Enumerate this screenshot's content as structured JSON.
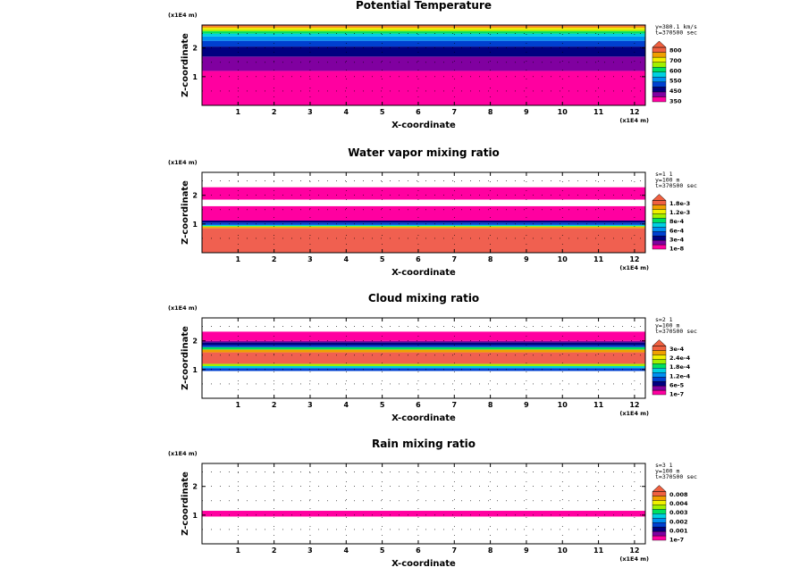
{
  "chart_data": [
    {
      "type": "heatmap",
      "title": "Potential Temperature",
      "xlabel": "X-coordinate",
      "ylabel": "Z-coordinate",
      "x_unit": "(x1E4 m)",
      "z_unit": "(x1E4 m)",
      "xlim": [
        0,
        12.3
      ],
      "zlim": [
        0,
        2.8
      ],
      "x_ticks": [
        "1",
        "2",
        "3",
        "4",
        "5",
        "6",
        "7",
        "8",
        "9",
        "10",
        "11",
        "12"
      ],
      "z_ticks": [
        "1",
        "2"
      ],
      "info": [
        "y=380.1 km/s",
        "t=370500 sec"
      ],
      "colorbar_labels": [
        "800",
        "700",
        "600",
        "550",
        "450",
        "350"
      ],
      "colors": [
        "#ff00a0",
        "#8000a0",
        "#000080",
        "#0040d0",
        "#0090f0",
        "#00d0e0",
        "#00e060",
        "#a0f000",
        "#f0f000",
        "#f0a000",
        "#f06040"
      ],
      "bands": [
        {
          "z0": 0.0,
          "z1": 1.2,
          "color": "#ff00a0"
        },
        {
          "z0": 1.2,
          "z1": 1.7,
          "color": "#8000a0"
        },
        {
          "z0": 1.7,
          "z1": 2.05,
          "color": "#000080"
        },
        {
          "z0": 2.05,
          "z1": 2.25,
          "color": "#0040d0"
        },
        {
          "z0": 2.25,
          "z1": 2.4,
          "color": "#0090f0"
        },
        {
          "z0": 2.4,
          "z1": 2.5,
          "color": "#00d0e0"
        },
        {
          "z0": 2.5,
          "z1": 2.58,
          "color": "#00e060"
        },
        {
          "z0": 2.58,
          "z1": 2.64,
          "color": "#a0f000"
        },
        {
          "z0": 2.64,
          "z1": 2.7,
          "color": "#f0f000"
        },
        {
          "z0": 2.7,
          "z1": 2.75,
          "color": "#f0a000"
        },
        {
          "z0": 2.75,
          "z1": 2.8,
          "color": "#f06040"
        }
      ]
    },
    {
      "type": "heatmap",
      "title": "Water vapor mixing ratio",
      "xlabel": "X-coordinate",
      "ylabel": "Z-coordinate",
      "x_unit": "(x1E4 m)",
      "z_unit": "(x1E4 m)",
      "xlim": [
        0,
        12.3
      ],
      "zlim": [
        0,
        2.8
      ],
      "x_ticks": [
        "1",
        "2",
        "3",
        "4",
        "5",
        "6",
        "7",
        "8",
        "9",
        "10",
        "11",
        "12"
      ],
      "z_ticks": [
        "1",
        "2"
      ],
      "info": [
        "s=1 1",
        "y=100 m",
        "t=370500 sec"
      ],
      "colorbar_labels": [
        "1.8e-3",
        "1.2e-3",
        "8e-4",
        "6e-4",
        "3e-4",
        "1e-8"
      ],
      "colors": [
        "#ff00a0",
        "#8000a0",
        "#000080",
        "#0040d0",
        "#0090f0",
        "#00d0e0",
        "#00e060",
        "#a0f000",
        "#f0f000",
        "#f0a000",
        "#f06040"
      ],
      "bands": [
        {
          "z0": 0.0,
          "z1": 0.85,
          "color": "#f06050"
        },
        {
          "z0": 0.85,
          "z1": 0.9,
          "color": "#f0a000"
        },
        {
          "z0": 0.9,
          "z1": 0.93,
          "color": "#a0f000"
        },
        {
          "z0": 0.93,
          "z1": 0.97,
          "color": "#00d0e0"
        },
        {
          "z0": 0.97,
          "z1": 1.05,
          "color": "#0040d0"
        },
        {
          "z0": 1.05,
          "z1": 1.12,
          "color": "#000080"
        },
        {
          "z0": 1.12,
          "z1": 1.62,
          "color": "#ff00a0"
        },
        {
          "z0": 1.85,
          "z1": 2.28,
          "color": "#ff00a0"
        }
      ]
    },
    {
      "type": "heatmap",
      "title": "Cloud mixing ratio",
      "xlabel": "X-coordinate",
      "ylabel": "Z-coordinate",
      "x_unit": "(x1E4 m)",
      "z_unit": "(x1E4 m)",
      "xlim": [
        0,
        12.3
      ],
      "zlim": [
        0,
        2.8
      ],
      "x_ticks": [
        "1",
        "2",
        "3",
        "4",
        "5",
        "6",
        "7",
        "8",
        "9",
        "10",
        "11",
        "12"
      ],
      "z_ticks": [
        "1",
        "2"
      ],
      "info": [
        "s=2 1",
        "y=100 m",
        "t=370500 sec"
      ],
      "colorbar_labels": [
        "3e-4",
        "2.4e-4",
        "1.8e-4",
        "1.2e-4",
        "6e-5",
        "1e-7"
      ],
      "colors": [
        "#ff00a0",
        "#8000a0",
        "#000080",
        "#0040d0",
        "#0090f0",
        "#00d0e0",
        "#00e060",
        "#a0f000",
        "#f0f000",
        "#f0a000",
        "#f06040"
      ],
      "bands": [
        {
          "z0": 0.95,
          "z1": 1.05,
          "color": "#0040d0"
        },
        {
          "z0": 1.05,
          "z1": 1.12,
          "color": "#00d0e0"
        },
        {
          "z0": 1.12,
          "z1": 1.2,
          "color": "#a0f000"
        },
        {
          "z0": 1.2,
          "z1": 1.6,
          "color": "#f06050"
        },
        {
          "z0": 1.6,
          "z1": 1.7,
          "color": "#f0a000"
        },
        {
          "z0": 1.7,
          "z1": 1.78,
          "color": "#00e060"
        },
        {
          "z0": 1.78,
          "z1": 1.85,
          "color": "#0040d0"
        },
        {
          "z0": 1.85,
          "z1": 1.95,
          "color": "#000080"
        },
        {
          "z0": 1.95,
          "z1": 2.0,
          "color": "#8000a0"
        },
        {
          "z0": 2.0,
          "z1": 2.32,
          "color": "#ff00a0"
        }
      ]
    },
    {
      "type": "heatmap",
      "title": "Rain mixing ratio",
      "xlabel": "X-coordinate",
      "ylabel": "Z-coordinate",
      "x_unit": "(x1E4 m)",
      "z_unit": "(x1E4 m)",
      "xlim": [
        0,
        12.3
      ],
      "zlim": [
        0,
        2.8
      ],
      "x_ticks": [
        "1",
        "2",
        "3",
        "4",
        "5",
        "6",
        "7",
        "8",
        "9",
        "10",
        "11",
        "12"
      ],
      "z_ticks": [
        "1",
        "2"
      ],
      "info": [
        "s=3 1",
        "y=100 m",
        "t=370500 sec"
      ],
      "colorbar_labels": [
        "0.008",
        "0.004",
        "0.003",
        "0.002",
        "0.001",
        "1e-7"
      ],
      "colors": [
        "#ff00a0",
        "#8000a0",
        "#000080",
        "#0040d0",
        "#0090f0",
        "#00d0e0",
        "#00e060",
        "#a0f000",
        "#f0f000",
        "#f0a000",
        "#f06040"
      ],
      "bands": [
        {
          "z0": 0.95,
          "z1": 1.15,
          "color": "#ff00a0"
        }
      ]
    }
  ]
}
